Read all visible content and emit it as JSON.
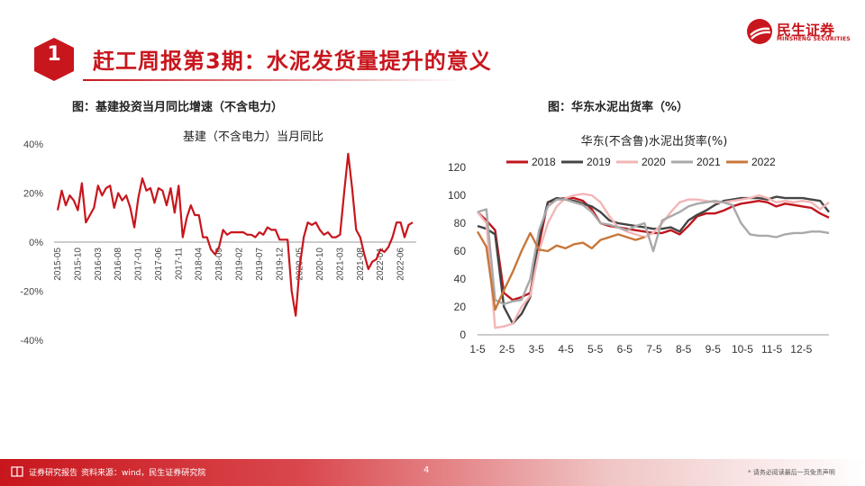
{
  "header": {
    "number": "1",
    "title": "赶工周报第3期：水泥发货量提升的意义"
  },
  "logo": {
    "name_cn": "民生证券",
    "name_en": "MINSHENG SECURITIES"
  },
  "colors": {
    "brand_red": "#c8161d",
    "line_left": "#c8161d",
    "s2018": "#c0151d",
    "s2019": "#444444",
    "s2020": "#f2b6b6",
    "s2021": "#a9a9a9",
    "s2022": "#c8773a"
  },
  "footer": {
    "brand": "证券研究报告",
    "source": "资料来源：wind，民生证券研究院",
    "page": "4",
    "disclaimer": "* 请务必阅读最后一页免责声明"
  },
  "chart_data": [
    {
      "type": "line",
      "caption": "图：基建投资当月同比增速（不含电力）",
      "title": "基建（不含电力）当月同比",
      "ylim": [
        -40,
        40
      ],
      "yticks": [
        "40%",
        "20%",
        "0%",
        "-20%",
        "-40%"
      ],
      "ytick_values": [
        40,
        20,
        0,
        -20,
        -40
      ],
      "xticks": [
        "2015-05",
        "2015-10",
        "2016-03",
        "2016-08",
        "2017-01",
        "2017-06",
        "2017-11",
        "2018-04",
        "2018-09",
        "2019-02",
        "2019-07",
        "2019-12",
        "2020-05",
        "2020-10",
        "2021-03",
        "2021-08",
        "2022-01",
        "2022-06"
      ],
      "start": "2015-05",
      "values": [
        13,
        21,
        15,
        19,
        17,
        13,
        24,
        8,
        11,
        14,
        23,
        19,
        22,
        23,
        14,
        20,
        17,
        19,
        14,
        6,
        18,
        26,
        21,
        22,
        16,
        22,
        21,
        15,
        22,
        12,
        23,
        2,
        10,
        15,
        11,
        11,
        2,
        2,
        -3,
        -5,
        -2,
        5,
        3,
        4,
        4,
        4,
        4,
        3,
        3,
        2,
        4,
        3,
        6,
        5,
        5,
        1,
        1,
        1,
        -20,
        -30,
        -10,
        2,
        8,
        7,
        8,
        5,
        3,
        4,
        2,
        2,
        3,
        20,
        36,
        22,
        5,
        2,
        -5,
        -11,
        -8,
        -7,
        -3,
        -4,
        -2,
        2,
        8,
        8,
        2,
        7,
        8
      ]
    },
    {
      "type": "line",
      "caption": "图：华东水泥出货率（%）",
      "title": "华东(不含鲁)水泥出货率(%)",
      "ylim": [
        0,
        120
      ],
      "yticks": [
        "0",
        "20",
        "40",
        "60",
        "80",
        "100",
        "120"
      ],
      "ytick_values": [
        0,
        20,
        40,
        60,
        80,
        100,
        120
      ],
      "xticks": [
        "1-5",
        "2-5",
        "3-5",
        "4-5",
        "5-5",
        "6-5",
        "7-5",
        "8-5",
        "9-5",
        "10-5",
        "11-5",
        "12-5"
      ],
      "legend_position": "top",
      "series": [
        {
          "name": "2018",
          "color_key": "s2018",
          "values": [
            88,
            82,
            75,
            30,
            25,
            27,
            30,
            65,
            95,
            97,
            98,
            98,
            96,
            90,
            80,
            78,
            77,
            76,
            75,
            74,
            73,
            73,
            75,
            72,
            78,
            85,
            87,
            87,
            89,
            92,
            94,
            95,
            96,
            95,
            92,
            94,
            93,
            92,
            91,
            87,
            84
          ]
        },
        {
          "name": "2019",
          "color_key": "s2019",
          "values": [
            78,
            76,
            72,
            20,
            8,
            15,
            27,
            70,
            95,
            98,
            97,
            96,
            94,
            92,
            88,
            82,
            80,
            79,
            78,
            77,
            76,
            76,
            77,
            74,
            82,
            86,
            89,
            93,
            96,
            97,
            98,
            98,
            98,
            97,
            99,
            98,
            98,
            98,
            97,
            96,
            88
          ]
        },
        {
          "name": "2020",
          "color_key": "s2020",
          "values": [
            88,
            80,
            5,
            6,
            8,
            20,
            28,
            60,
            80,
            92,
            98,
            100,
            101,
            100,
            95,
            85,
            77,
            74,
            72,
            70,
            73,
            80,
            88,
            95,
            97,
            97,
            96,
            95,
            95,
            96,
            97,
            98,
            100,
            98,
            95,
            96,
            95,
            96,
            95,
            90,
            95
          ]
        },
        {
          "name": "2021",
          "color_key": "s2021",
          "values": [
            88,
            90,
            25,
            22,
            24,
            25,
            40,
            75,
            92,
            97,
            97,
            95,
            93,
            88,
            80,
            79,
            77,
            75,
            78,
            80,
            60,
            82,
            85,
            88,
            92,
            94,
            95,
            96,
            95,
            93,
            80,
            72,
            71,
            71,
            70,
            72,
            73,
            73,
            74,
            74,
            73
          ]
        },
        {
          "name": "2022",
          "color_key": "s2022",
          "values": [
            74,
            63,
            18,
            32,
            45,
            60,
            73,
            61,
            60,
            64,
            62,
            65,
            66,
            62,
            68,
            70,
            72,
            70,
            68,
            70
          ]
        }
      ]
    }
  ]
}
